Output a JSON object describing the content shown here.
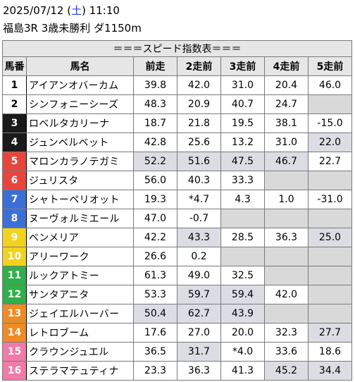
{
  "header": {
    "date_prefix": "2025/07/12 (",
    "weekday": "土",
    "date_suffix": ") 11:10",
    "race_line": "福島3R 3歳未勝利 ダ1150m"
  },
  "table": {
    "title": "＝＝＝スピード指数表＝＝＝",
    "columns": [
      "馬番",
      "馬名",
      "前走",
      "2走前",
      "3走前",
      "4走前",
      "5走前"
    ],
    "rows": [
      {
        "num": "1",
        "name": "アイアンオバーカム",
        "color": "#ffffff",
        "text": "#000000",
        "vals": [
          "39.8",
          "42.0",
          "31.0",
          "20.4",
          "46.0"
        ],
        "hl": [
          false,
          false,
          false,
          false,
          false
        ]
      },
      {
        "num": "2",
        "name": "シンフォニーシーズ",
        "color": "#ffffff",
        "text": "#000000",
        "vals": [
          "48.3",
          "20.9",
          "40.7",
          "24.7",
          ""
        ],
        "hl": [
          false,
          false,
          false,
          false,
          true
        ]
      },
      {
        "num": "3",
        "name": "ロベルタカリーナ",
        "color": "#1a1a1a",
        "text": "#ffffff",
        "vals": [
          "18.7",
          "21.8",
          "19.5",
          "38.1",
          "-15.0"
        ],
        "hl": [
          false,
          false,
          false,
          false,
          false
        ]
      },
      {
        "num": "4",
        "name": "ジュンベルベット",
        "color": "#1a1a1a",
        "text": "#ffffff",
        "vals": [
          "42.8",
          "25.6",
          "13.2",
          "31.0",
          "22.0"
        ],
        "hl": [
          false,
          false,
          false,
          false,
          true
        ]
      },
      {
        "num": "5",
        "name": "マロンカラノテガミ",
        "color": "#e8453c",
        "text": "#ffffff",
        "vals": [
          "52.2",
          "51.6",
          "47.5",
          "46.7",
          "22.7"
        ],
        "hl": [
          true,
          true,
          true,
          true,
          false
        ]
      },
      {
        "num": "6",
        "name": "ジュリスタ",
        "color": "#e8453c",
        "text": "#ffffff",
        "vals": [
          "56.0",
          "40.3",
          "33.3",
          "",
          ""
        ],
        "hl": [
          false,
          false,
          false,
          true,
          true
        ]
      },
      {
        "num": "7",
        "name": "シャトーペリオット",
        "color": "#3b6fd6",
        "text": "#ffffff",
        "vals": [
          "19.3",
          "*4.7",
          "4.3",
          "1.0",
          "-31.0"
        ],
        "hl": [
          false,
          false,
          false,
          false,
          false
        ]
      },
      {
        "num": "8",
        "name": "ヌーヴォルミエール",
        "color": "#3b6fd6",
        "text": "#ffffff",
        "vals": [
          "47.0",
          "-0.7",
          "",
          "",
          ""
        ],
        "hl": [
          false,
          false,
          true,
          true,
          true
        ]
      },
      {
        "num": "9",
        "name": "ベンメリア",
        "color": "#f2d21b",
        "text": "#ffffff",
        "vals": [
          "42.2",
          "43.3",
          "28.5",
          "36.3",
          "25.0"
        ],
        "hl": [
          false,
          true,
          false,
          false,
          true
        ]
      },
      {
        "num": "10",
        "name": "アリーワーク",
        "color": "#f2d21b",
        "text": "#ffffff",
        "vals": [
          "26.6",
          "0.2",
          "",
          "",
          ""
        ],
        "hl": [
          false,
          false,
          true,
          true,
          true
        ]
      },
      {
        "num": "11",
        "name": "ルックアトミー",
        "color": "#2fb04a",
        "text": "#ffffff",
        "vals": [
          "61.3",
          "49.0",
          "32.5",
          "",
          ""
        ],
        "hl": [
          false,
          false,
          false,
          true,
          true
        ]
      },
      {
        "num": "12",
        "name": "サンタアニタ",
        "color": "#2fb04a",
        "text": "#ffffff",
        "vals": [
          "53.3",
          "59.7",
          "59.4",
          "42.0",
          ""
        ],
        "hl": [
          false,
          true,
          true,
          false,
          true
        ]
      },
      {
        "num": "13",
        "name": "ジェイエルハーバー",
        "color": "#f08a24",
        "text": "#ffffff",
        "vals": [
          "50.4",
          "62.7",
          "43.9",
          "",
          ""
        ],
        "hl": [
          true,
          true,
          true,
          true,
          true
        ]
      },
      {
        "num": "14",
        "name": "レトロブーム",
        "color": "#f08a24",
        "text": "#ffffff",
        "vals": [
          "17.6",
          "27.0",
          "20.0",
          "32.3",
          "27.7"
        ],
        "hl": [
          false,
          false,
          false,
          false,
          true
        ]
      },
      {
        "num": "15",
        "name": "クラウンジュエル",
        "color": "#f07aa8",
        "text": "#ffffff",
        "vals": [
          "36.5",
          "31.7",
          "*4.0",
          "33.6",
          "18.6"
        ],
        "hl": [
          false,
          true,
          false,
          false,
          false
        ]
      },
      {
        "num": "16",
        "name": "ステラマテュティナ",
        "color": "#f07aa8",
        "text": "#ffffff",
        "vals": [
          "23.3",
          "36.3",
          "41.3",
          "45.2",
          "34.4"
        ],
        "hl": [
          false,
          false,
          false,
          true,
          true
        ]
      }
    ]
  }
}
